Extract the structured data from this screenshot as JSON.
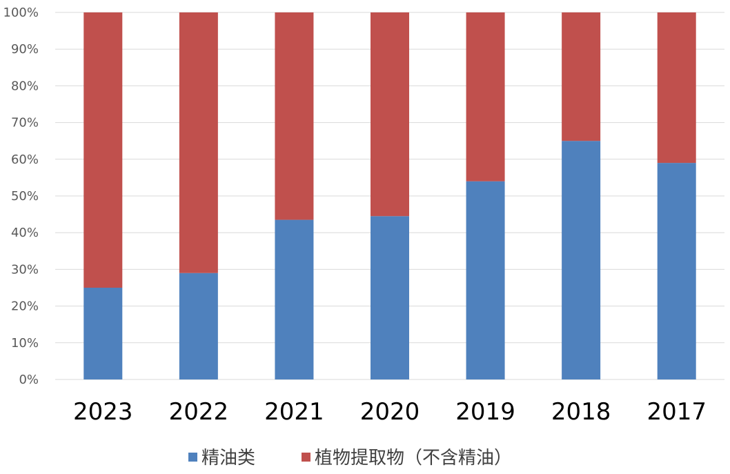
{
  "chart_data": {
    "type": "bar",
    "stacked": true,
    "percent": true,
    "categories": [
      "2023",
      "2022",
      "2021",
      "2020",
      "2019",
      "2018",
      "2017"
    ],
    "series": [
      {
        "name": "精油类",
        "color": "#4f81bd",
        "values": [
          25,
          29,
          43.5,
          44.5,
          54,
          65,
          59
        ]
      },
      {
        "name": "植物提取物（不含精油）",
        "color": "#c0504d",
        "values": [
          75,
          71,
          56.5,
          55.5,
          46,
          35,
          41
        ]
      }
    ],
    "y_ticks": [
      "0%",
      "10%",
      "20%",
      "30%",
      "40%",
      "50%",
      "60%",
      "70%",
      "80%",
      "90%",
      "100%"
    ],
    "ylim": [
      0,
      100
    ],
    "grid": true,
    "legend": "bottom"
  }
}
